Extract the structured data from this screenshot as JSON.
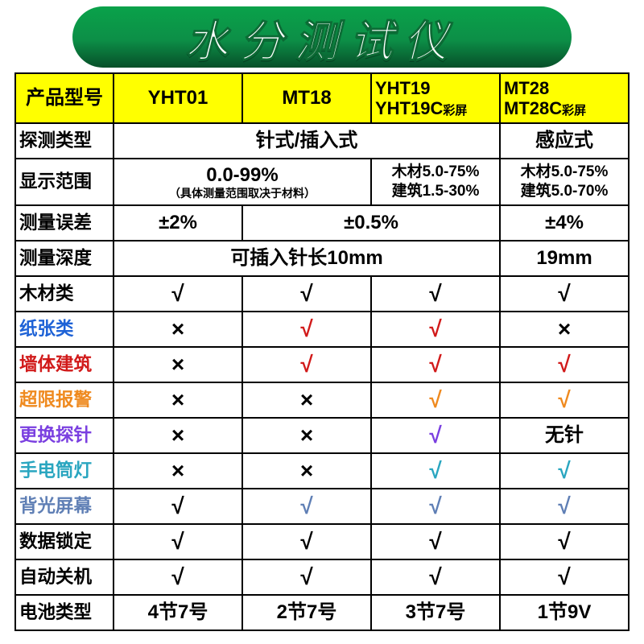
{
  "title": "水分测试仪",
  "title_gradient": {
    "top": "#0aa24a",
    "mid": "#0c8f47",
    "bot": "#074f29"
  },
  "colors": {
    "black": "#000000",
    "blue": "#1e62d6",
    "red": "#d11a1a",
    "orange": "#ef8a1f",
    "purple": "#7a3fe0",
    "teal": "#2aa6c0",
    "steelblue": "#5f7fb5",
    "header_bg": "#ffff00"
  },
  "header": {
    "label": "产品型号",
    "cols": [
      {
        "line1": "YHT01",
        "line2": ""
      },
      {
        "line1": "MT18",
        "line2": ""
      },
      {
        "line1": "YHT19",
        "line2": "YHT19C",
        "suffix": "彩屏"
      },
      {
        "line1": "MT28",
        "line2": "MT28C",
        "suffix": "彩屏"
      }
    ]
  },
  "rows": [
    {
      "label": "探测类型",
      "label_color": "black",
      "cells": [
        {
          "span": 3,
          "text": "针式/插入式",
          "cls": "txt-big"
        },
        {
          "span": 1,
          "text": "感应式",
          "cls": "txt-big"
        }
      ]
    },
    {
      "label": "显示范围",
      "label_color": "black",
      "tall": true,
      "cells": [
        {
          "span": 2,
          "html": "<span class='txt-big'>0.0-99%</span><span class='sub txt-sm'>（具体测量范围取决于材料）</span>"
        },
        {
          "span": 1,
          "html": "<span class='two-line'>木材5.0-75%<br>建筑1.5-30%</span>"
        },
        {
          "span": 1,
          "html": "<span class='two-line'>木材5.0-75%<br>建筑5.0-70%</span>"
        }
      ]
    },
    {
      "label": "测量误差",
      "label_color": "black",
      "cells": [
        {
          "span": 1,
          "text": "±2%",
          "cls": "txt-big"
        },
        {
          "span": 2,
          "text": "±0.5%",
          "cls": "txt-big"
        },
        {
          "span": 1,
          "text": "±4%",
          "cls": "txt-big"
        }
      ]
    },
    {
      "label": "测量深度",
      "label_color": "black",
      "cells": [
        {
          "span": 3,
          "text": "可插入针长10mm",
          "cls": "txt-big"
        },
        {
          "span": 1,
          "text": "19mm",
          "cls": "txt-big"
        }
      ]
    },
    {
      "label": "木材类",
      "label_color": "black",
      "cells": [
        {
          "mark": "check",
          "color": "black"
        },
        {
          "mark": "check",
          "color": "black"
        },
        {
          "mark": "check",
          "color": "black"
        },
        {
          "mark": "check",
          "color": "black"
        }
      ]
    },
    {
      "label": "纸张类",
      "label_color": "blue",
      "cells": [
        {
          "mark": "cross",
          "color": "black"
        },
        {
          "mark": "check",
          "color": "red"
        },
        {
          "mark": "check",
          "color": "red"
        },
        {
          "mark": "cross",
          "color": "black"
        }
      ]
    },
    {
      "label": "墙体建筑",
      "label_color": "red",
      "cells": [
        {
          "mark": "cross",
          "color": "black"
        },
        {
          "mark": "check",
          "color": "red"
        },
        {
          "mark": "check",
          "color": "red"
        },
        {
          "mark": "check",
          "color": "red"
        }
      ]
    },
    {
      "label": "超限报警",
      "label_color": "orange",
      "cells": [
        {
          "mark": "cross",
          "color": "black"
        },
        {
          "mark": "cross",
          "color": "black"
        },
        {
          "mark": "check",
          "color": "orange"
        },
        {
          "mark": "check",
          "color": "orange"
        }
      ]
    },
    {
      "label": "更换探针",
      "label_color": "purple",
      "cells": [
        {
          "mark": "cross",
          "color": "black"
        },
        {
          "mark": "cross",
          "color": "black"
        },
        {
          "mark": "check",
          "color": "purple"
        },
        {
          "text": "无针",
          "cls": "txt-big"
        }
      ]
    },
    {
      "label": "手电筒灯",
      "label_color": "teal",
      "cells": [
        {
          "mark": "cross",
          "color": "black"
        },
        {
          "mark": "cross",
          "color": "black"
        },
        {
          "mark": "check",
          "color": "teal"
        },
        {
          "mark": "check",
          "color": "teal"
        }
      ]
    },
    {
      "label": "背光屏幕",
      "label_color": "steelblue",
      "cells": [
        {
          "mark": "check",
          "color": "black"
        },
        {
          "mark": "check",
          "color": "steelblue"
        },
        {
          "mark": "check",
          "color": "steelblue"
        },
        {
          "mark": "check",
          "color": "steelblue"
        }
      ]
    },
    {
      "label": "数据锁定",
      "label_color": "black",
      "cells": [
        {
          "mark": "check",
          "color": "black"
        },
        {
          "mark": "check",
          "color": "black"
        },
        {
          "mark": "check",
          "color": "black"
        },
        {
          "mark": "check",
          "color": "black"
        }
      ]
    },
    {
      "label": "自动关机",
      "label_color": "black",
      "cells": [
        {
          "mark": "check",
          "color": "black"
        },
        {
          "mark": "check",
          "color": "black"
        },
        {
          "mark": "check",
          "color": "black"
        },
        {
          "mark": "check",
          "color": "black"
        }
      ]
    },
    {
      "label": "电池类型",
      "label_color": "black",
      "cells": [
        {
          "text": "4节7号",
          "cls": "txt-big"
        },
        {
          "text": "2节7号",
          "cls": "txt-big"
        },
        {
          "text": "3节7号",
          "cls": "txt-big"
        },
        {
          "text": "1节9V",
          "cls": "txt-big"
        }
      ]
    }
  ]
}
